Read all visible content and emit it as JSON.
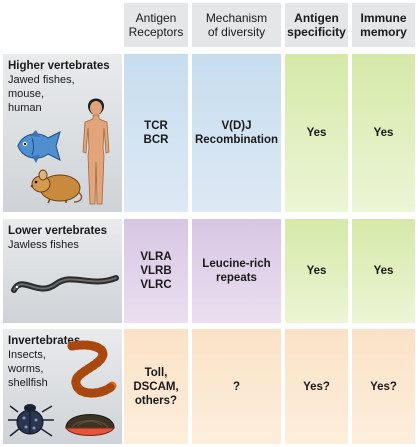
{
  "headers": [
    "Antigen\nReceptors",
    "Mechanism\nof diversity",
    "Antigen\nspecificity",
    "Immune\nmemory"
  ],
  "rows": [
    {
      "title": "Higher vertebrates",
      "subtitle": "Jawed fishes,\nmouse,\nhuman",
      "receptors": "TCR\nBCR",
      "mechanism": "V(D)J\nRecombination",
      "specificity": "Yes",
      "memory": "Yes"
    },
    {
      "title": "Lower vertebrates",
      "subtitle": "Jawless fishes",
      "receptors": "VLRA\nVLRB\nVLRC",
      "mechanism": "Leucine-rich\nrepeats",
      "specificity": "Yes",
      "memory": "Yes"
    },
    {
      "title": "Invertebrates",
      "subtitle": "Insects,\nworms,\nshellfish",
      "receptors": "Toll,\nDSCAM,\nothers?",
      "mechanism": "?",
      "specificity": "Yes?",
      "memory": "Yes?"
    }
  ],
  "colors": {
    "vertebrate_blue": "#c7ddef",
    "lamprey_purple": "#d8c6e3",
    "invertebrate_orange": "#fbe2c6",
    "yes_green": "#d6e9a8",
    "header_gray": "#e4e6e8"
  },
  "illustrations": [
    "fish-icon",
    "mouse-icon",
    "human-icon",
    "lamprey-icon",
    "worm-icon",
    "beetle-icon",
    "clam-icon"
  ]
}
